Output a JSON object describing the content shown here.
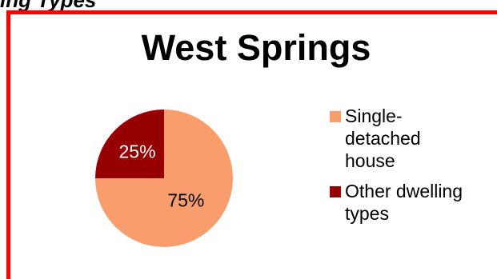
{
  "header": {
    "clipped_text": "ing Types"
  },
  "chart_data": {
    "type": "pie",
    "title": "West Springs",
    "categories": [
      "Single-detached house",
      "Other dwelling types"
    ],
    "values": [
      75,
      25
    ],
    "data_labels": [
      "75%",
      "25%"
    ],
    "colors": [
      "#fa9d6c",
      "#970002"
    ],
    "legend_position": "right"
  },
  "legend": {
    "items": [
      {
        "label": "Single-detached house",
        "color": "#fa9d6c"
      },
      {
        "label": "Other dwelling types",
        "color": "#970002"
      }
    ]
  },
  "colors": {
    "frame": "#ff0000",
    "background": "#ffffff"
  }
}
